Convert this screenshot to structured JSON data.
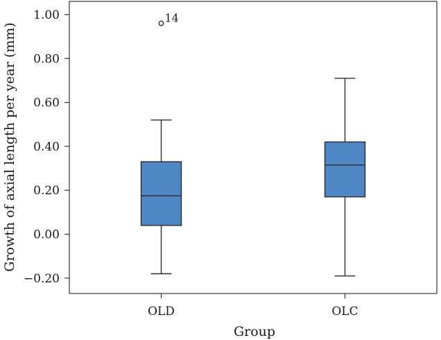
{
  "chart_data": {
    "type": "box",
    "xlabel": "Group",
    "ylabel": "Growth of axial length per year (mm)",
    "ylim": [
      -0.27,
      1.06
    ],
    "yticks": [
      -0.2,
      0.0,
      0.2,
      0.4,
      0.6,
      0.8,
      1.0
    ],
    "ytick_labels": [
      "−0.20",
      "0.00",
      "0.20",
      "0.40",
      "0.60",
      "0.80",
      "1.00"
    ],
    "categories": [
      "OLD",
      "OLC"
    ],
    "box_color": "#4f86c6",
    "boxes": [
      {
        "name": "OLD",
        "whisker_low": -0.18,
        "q1": 0.04,
        "median": 0.175,
        "q3": 0.33,
        "whisker_high": 0.52,
        "outliers": [
          {
            "value": 0.96,
            "label": "14"
          }
        ]
      },
      {
        "name": "OLC",
        "whisker_low": -0.19,
        "q1": 0.17,
        "median": 0.315,
        "q3": 0.42,
        "whisker_high": 0.71,
        "outliers": []
      }
    ]
  }
}
